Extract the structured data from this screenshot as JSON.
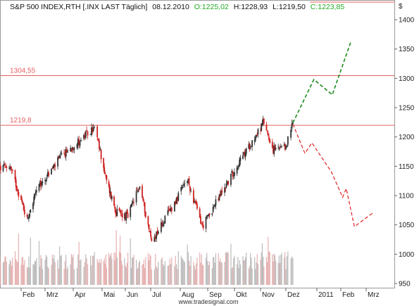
{
  "header": {
    "instrument": "S&P 500 INDEX,RTH [.INX LAST Täglich]",
    "date": "08.12.2010",
    "open": "O:1225,02",
    "high": "H:1228,93",
    "low": "L:1219,50",
    "close": "C:1223,85"
  },
  "footer": {
    "source": "www.tradesignal.com"
  },
  "colors": {
    "up_candle": "#333333",
    "down_candle": "#cc2222",
    "level_line": "#e86060",
    "bull_path": "#1a8a1a",
    "bear_path": "#e02020",
    "header_green": "#22aa22",
    "header_red": "#dd2222",
    "volume_up": "#bbbbbb",
    "volume_down": "#e6b0b0"
  },
  "chart_data": {
    "type": "candlestick",
    "currency_label": "$",
    "x_tick_labels": [
      "Feb",
      "Mrz",
      "Apr",
      "Mai",
      "Jun",
      "Jul",
      "Aug",
      "Sep",
      "Okt",
      "Nov",
      "Dez",
      "2011",
      "Feb",
      "Mrz"
    ],
    "y_ticks": [
      950,
      1000,
      1050,
      1100,
      1150,
      1200,
      1250,
      1300,
      1350,
      1400
    ],
    "ylim": [
      950,
      1445
    ],
    "levels": [
      {
        "label": "1304,55",
        "value": 1304.55
      },
      {
        "label": "1219,8",
        "value": 1219.8
      }
    ],
    "price_anchors": [
      {
        "date": "2010-01-04",
        "price": 1145
      },
      {
        "date": "2010-01-19",
        "price": 1150
      },
      {
        "date": "2010-02-08",
        "price": 1060
      },
      {
        "date": "2010-02-19",
        "price": 1108
      },
      {
        "date": "2010-03-18",
        "price": 1165
      },
      {
        "date": "2010-04-23",
        "price": 1215
      },
      {
        "date": "2010-05-06",
        "price": 1128
      },
      {
        "date": "2010-05-20",
        "price": 1072
      },
      {
        "date": "2010-06-04",
        "price": 1064
      },
      {
        "date": "2010-06-18",
        "price": 1117
      },
      {
        "date": "2010-07-02",
        "price": 1022
      },
      {
        "date": "2010-08-09",
        "price": 1127
      },
      {
        "date": "2010-08-26",
        "price": 1047
      },
      {
        "date": "2010-09-30",
        "price": 1141
      },
      {
        "date": "2010-11-05",
        "price": 1225
      },
      {
        "date": "2010-11-16",
        "price": 1178
      },
      {
        "date": "2010-11-30",
        "price": 1180
      },
      {
        "date": "2010-12-08",
        "price": 1223.85
      }
    ],
    "bull_scenario": [
      {
        "date": "2010-12-08",
        "price": 1224
      },
      {
        "date": "2010-12-29",
        "price": 1298
      },
      {
        "date": "2011-01-21",
        "price": 1272
      },
      {
        "date": "2011-02-12",
        "price": 1362
      }
    ],
    "bear_scenario": [
      {
        "date": "2010-12-08",
        "price": 1222
      },
      {
        "date": "2010-12-20",
        "price": 1172
      },
      {
        "date": "2010-12-27",
        "price": 1190
      },
      {
        "date": "2011-01-20",
        "price": 1140
      },
      {
        "date": "2011-02-03",
        "price": 1097
      },
      {
        "date": "2011-02-07",
        "price": 1112
      },
      {
        "date": "2011-02-16",
        "price": 1047
      },
      {
        "date": "2011-03-08",
        "price": 1070
      }
    ]
  }
}
